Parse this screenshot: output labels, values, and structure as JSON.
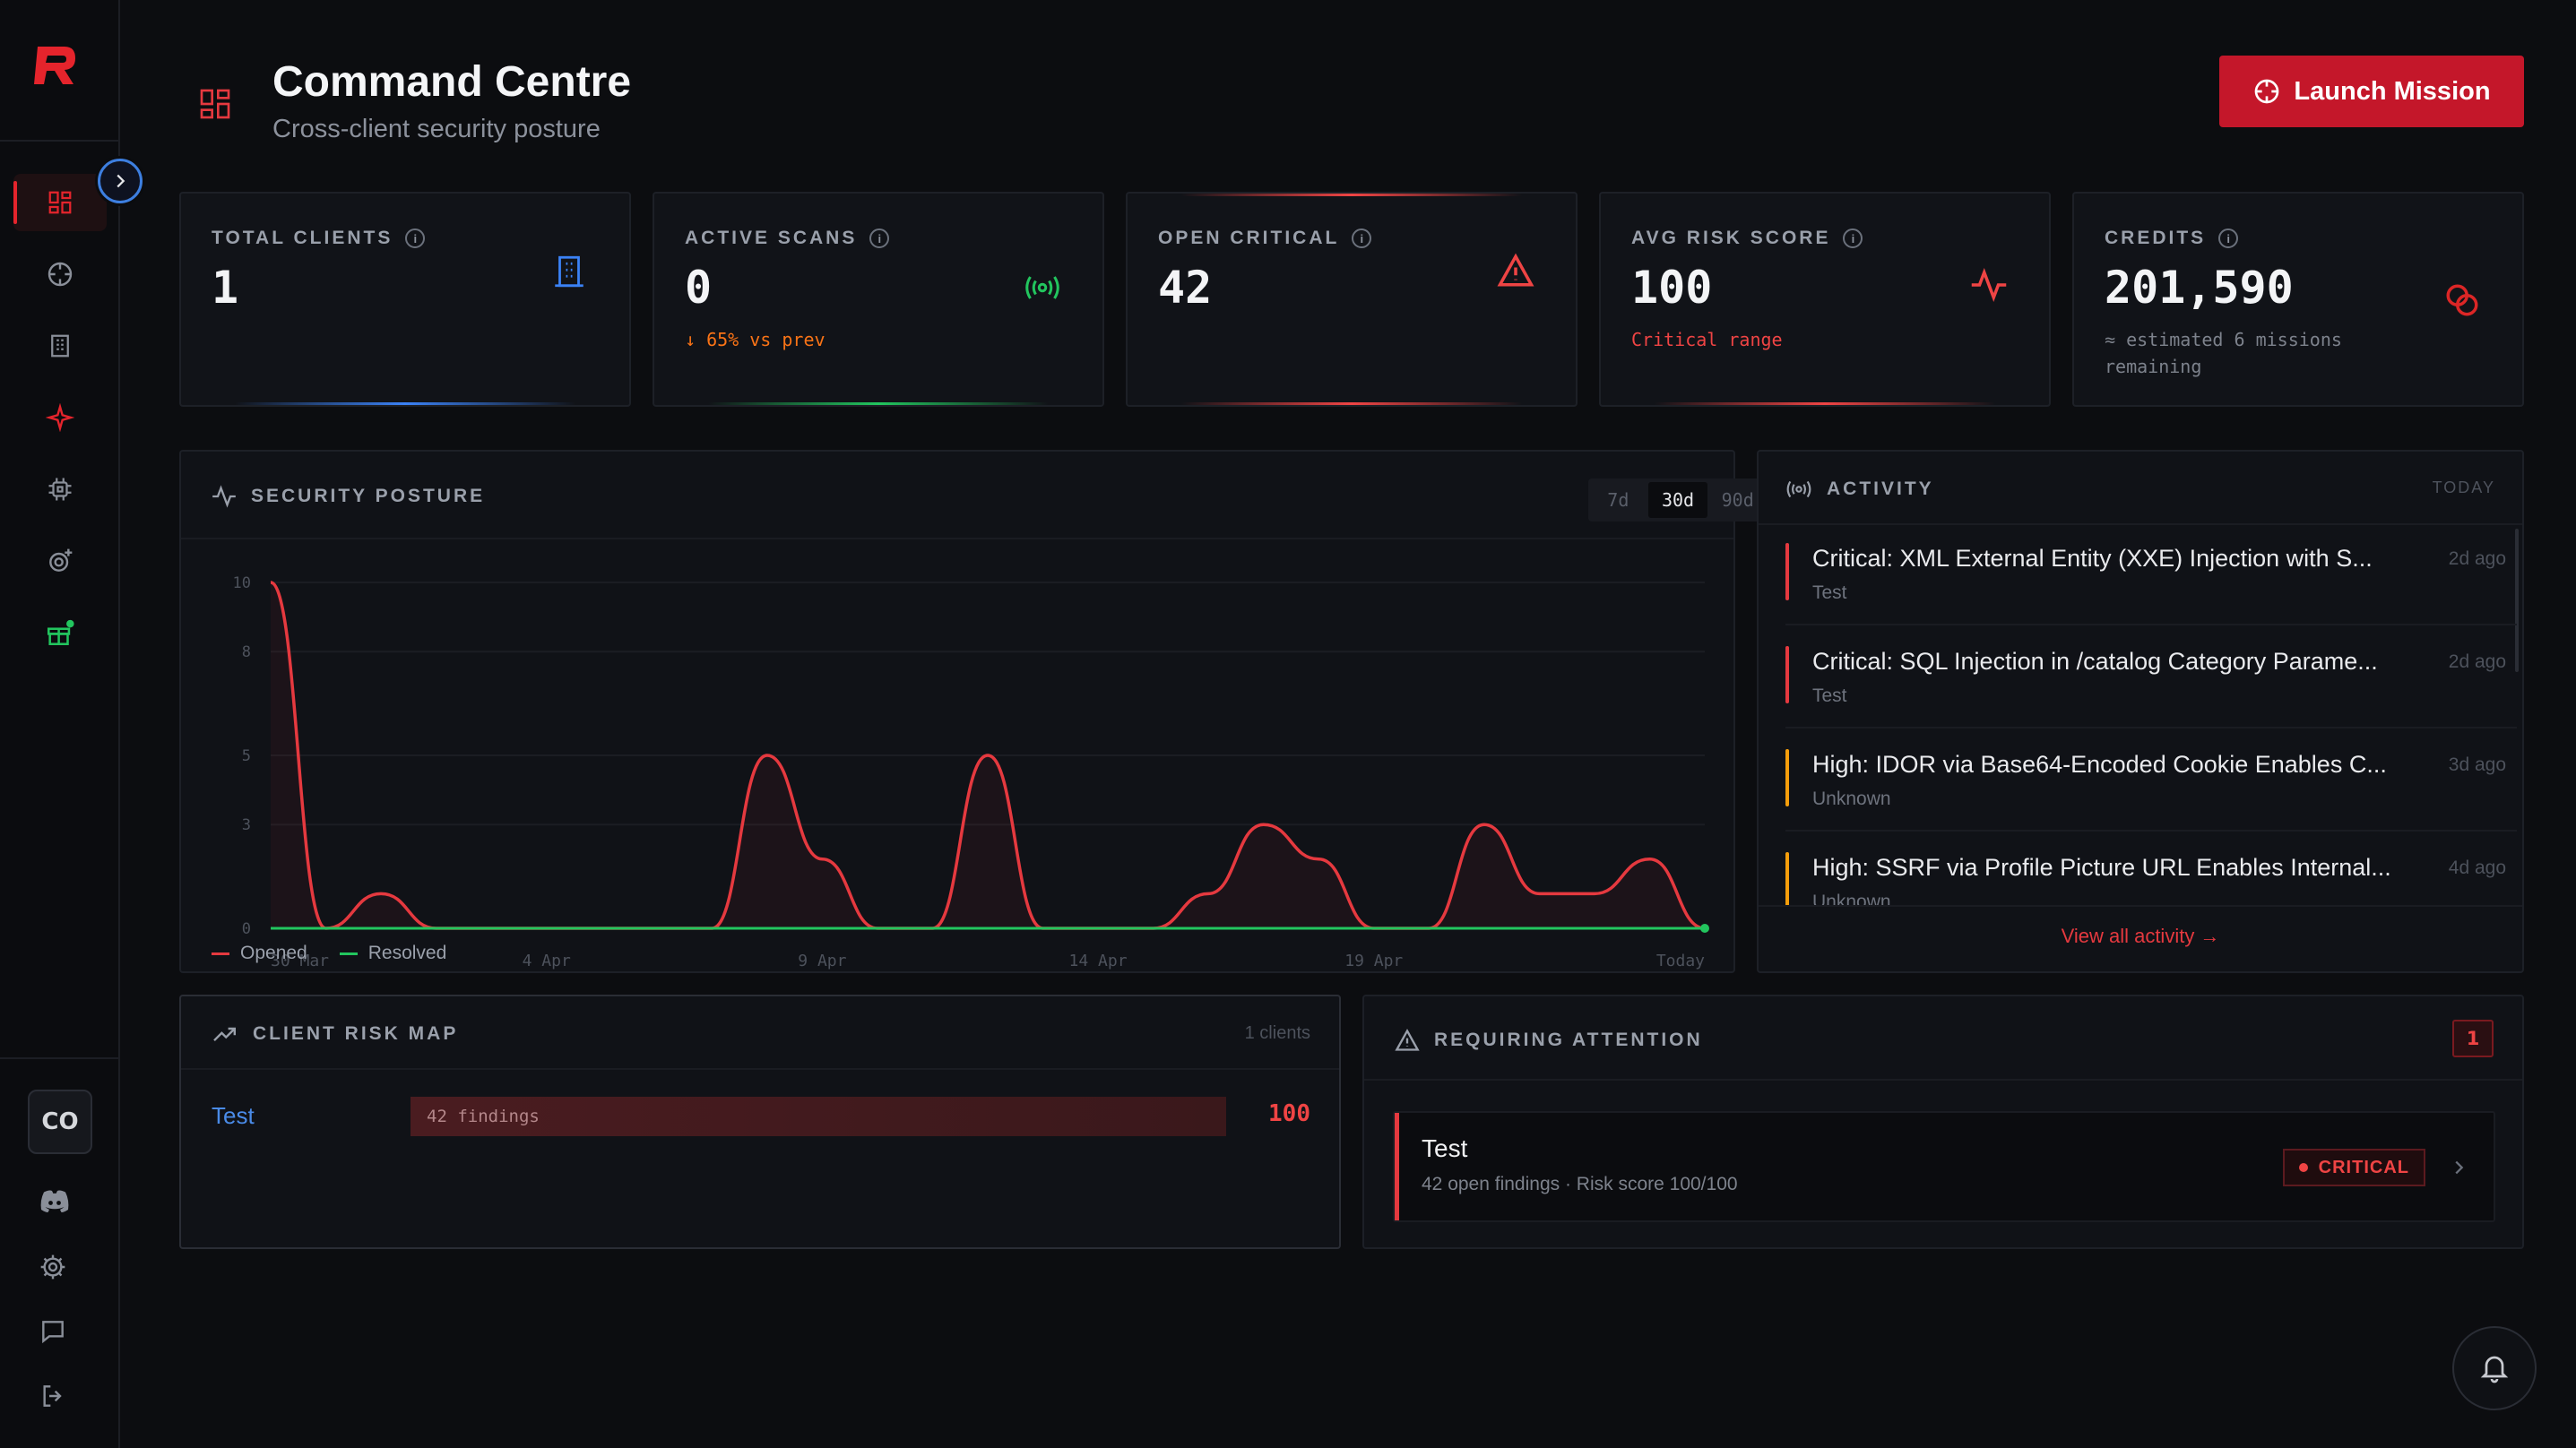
{
  "header": {
    "title": "Command Centre",
    "subtitle": "Cross-client security posture",
    "launch_label": "Launch Mission"
  },
  "stats": [
    {
      "label": "TOTAL CLIENTS",
      "value": "1",
      "sub": "",
      "icon": "building-icon",
      "color": "#3b82f6"
    },
    {
      "label": "ACTIVE SCANS",
      "value": "0",
      "sub": "↓ 65% vs prev",
      "icon": "broadcast-icon",
      "color": "#22c55e"
    },
    {
      "label": "OPEN CRITICAL",
      "value": "42",
      "sub": "",
      "icon": "warning-icon",
      "color": "#ef4444"
    },
    {
      "label": "AVG RISK SCORE",
      "value": "100",
      "sub": "Critical range",
      "icon": "pulse-icon",
      "color": "#ef4444"
    },
    {
      "label": "CREDITS",
      "value": "201,590",
      "sub": "≈ estimated 6 missions remaining",
      "icon": "coins-icon",
      "color": "#dc2626"
    }
  ],
  "posture": {
    "title": "SECURITY POSTURE",
    "ranges": [
      "7d",
      "30d",
      "90d"
    ],
    "selected_range": "30d",
    "legend": {
      "opened": "Opened",
      "resolved": "Resolved"
    }
  },
  "chart_data": {
    "type": "area",
    "x": [
      "30 Mar",
      "31 Mar",
      "1 Apr",
      "2 Apr",
      "3 Apr",
      "4 Apr",
      "5 Apr",
      "6 Apr",
      "7 Apr",
      "8 Apr",
      "9 Apr",
      "10 Apr",
      "11 Apr",
      "12 Apr",
      "13 Apr",
      "14 Apr",
      "15 Apr",
      "16 Apr",
      "17 Apr",
      "18 Apr",
      "19 Apr",
      "20 Apr",
      "21 Apr",
      "22 Apr",
      "23 Apr",
      "24 Apr",
      "Today"
    ],
    "xticks": [
      "30 Mar",
      "4 Apr",
      "9 Apr",
      "14 Apr",
      "19 Apr",
      "Today"
    ],
    "yticks": [
      "10",
      "8",
      "5",
      "3",
      "0"
    ],
    "ylim": [
      0,
      10
    ],
    "series": [
      {
        "name": "Opened",
        "color": "#e5393f",
        "values": [
          10,
          0,
          1,
          0,
          0,
          0,
          0,
          0,
          0,
          5,
          2,
          0,
          0,
          5,
          0,
          0,
          0,
          1,
          3,
          2,
          0,
          0,
          3,
          1,
          1,
          2,
          0
        ]
      },
      {
        "name": "Resolved",
        "color": "#22c55e",
        "values": [
          0,
          0,
          0,
          0,
          0,
          0,
          0,
          0,
          0,
          0,
          0,
          0,
          0,
          0,
          0,
          0,
          0,
          0,
          0,
          0,
          0,
          0,
          0,
          0,
          0,
          0,
          0
        ]
      }
    ]
  },
  "activity": {
    "title": "ACTIVITY",
    "period": "TODAY",
    "view_all": "View all activity →",
    "items": [
      {
        "title": "Critical: XML External Entity (XXE) Injection with S...",
        "sub": "Test",
        "time": "2d ago",
        "color": "#e5393f"
      },
      {
        "title": "Critical: SQL Injection in /catalog Category Parame...",
        "sub": "Test",
        "time": "2d ago",
        "color": "#e5393f"
      },
      {
        "title": "High: IDOR via Base64-Encoded Cookie Enables C...",
        "sub": "Unknown",
        "time": "3d ago",
        "color": "#f59e0b"
      },
      {
        "title": "High: SSRF via Profile Picture URL Enables Internal...",
        "sub": "Unknown",
        "time": "4d ago",
        "color": "#f59e0b"
      }
    ]
  },
  "risk_map": {
    "title": "CLIENT RISK MAP",
    "count": "1 clients",
    "rows": [
      {
        "client": "Test",
        "findings": "42 findings",
        "score": "100",
        "fill": 1.0
      }
    ]
  },
  "attention": {
    "title": "REQUIRING ATTENTION",
    "badge": "1",
    "items": [
      {
        "name": "Test",
        "detail": "42 open findings · Risk score 100/100",
        "severity": "CRITICAL"
      }
    ]
  },
  "sidebar": {
    "avatar": "CO"
  }
}
